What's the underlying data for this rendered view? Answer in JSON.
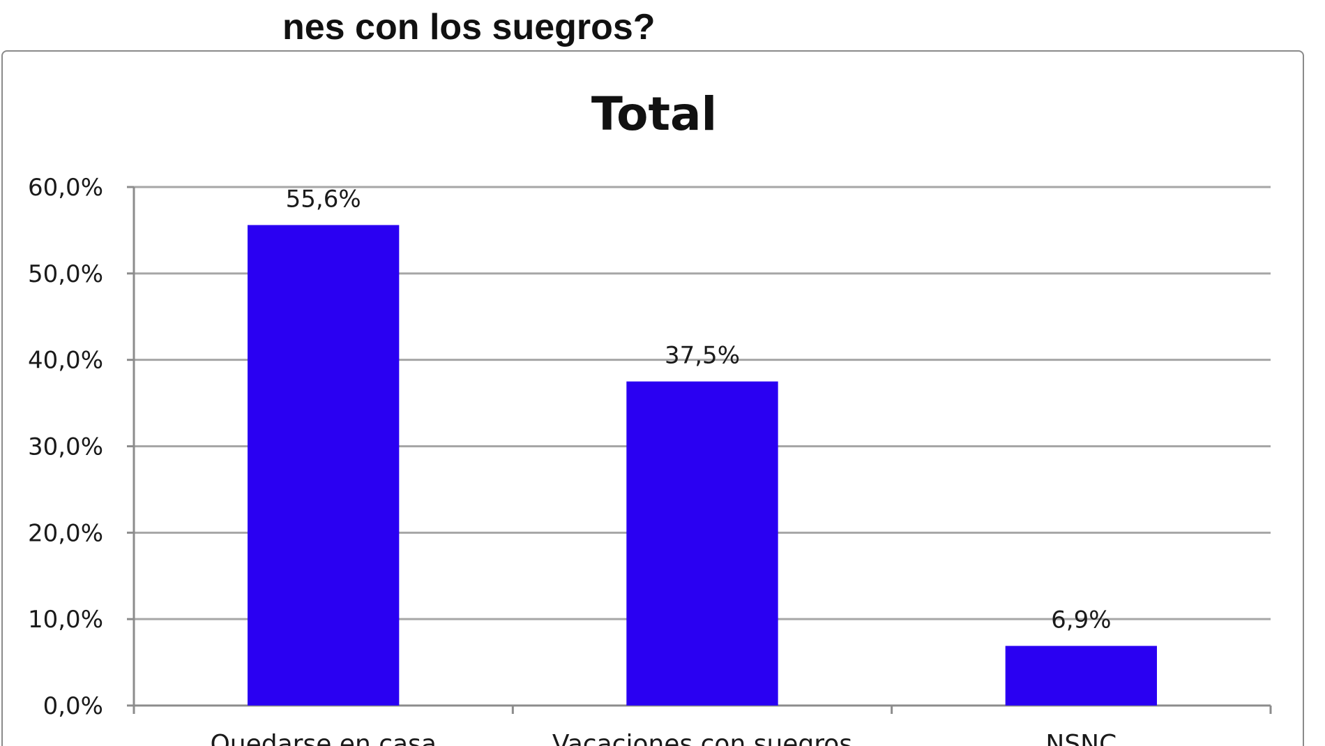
{
  "question": {
    "title": "nes con los suegros?"
  },
  "colors": {
    "bar": "#2a00f2",
    "grid": "#a6a6a6",
    "axis": "#8c8c8c",
    "frame": "#8a8a8a"
  },
  "chart_data": {
    "type": "bar",
    "title": "Total",
    "xlabel": "",
    "ylabel": "",
    "categories": [
      "Quedarse en casa",
      "Vacaciones con suegros",
      "NSNC"
    ],
    "values": [
      55.6,
      37.5,
      6.9
    ],
    "data_labels": [
      "55,6%",
      "37,5%",
      "6,9%"
    ],
    "ylim": [
      0,
      60
    ],
    "yticks": [
      0,
      10,
      20,
      30,
      40,
      50,
      60
    ],
    "ytick_labels": [
      "0,0%",
      "10,0%",
      "20,0%",
      "30,0%",
      "40,0%",
      "50,0%",
      "60,0%"
    ],
    "grid": true,
    "legend": "none"
  }
}
